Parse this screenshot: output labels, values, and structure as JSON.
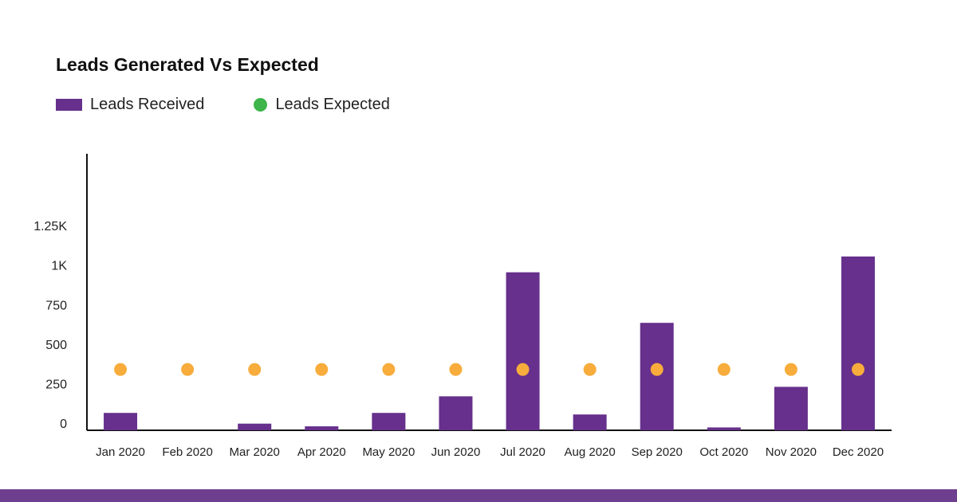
{
  "colors": {
    "bar": "#66308C",
    "expected_marker": "#F7AC3B",
    "legend_expected": "#3DB54A",
    "axis": "#111111",
    "footer": "#6F3F8F"
  },
  "chart_data": {
    "type": "bar",
    "title": "Leads Generated Vs Expected",
    "xlabel": "",
    "ylabel": "",
    "ylim": [
      0,
      1750
    ],
    "yticks": [
      0,
      250,
      500,
      750,
      1000,
      1250
    ],
    "ytick_labels": [
      "0",
      "250",
      "500",
      "750",
      "1K",
      "1.25K"
    ],
    "grid": false,
    "legend_placement": "top-left",
    "categories": [
      "Jan 2020",
      "Feb 2020",
      "Mar 2020",
      "Apr 2020",
      "May 2020",
      "Jun 2020",
      "Jul 2020",
      "Aug 2020",
      "Sep 2020",
      "Oct 2020",
      "Nov 2020",
      "Dec 2020"
    ],
    "series": [
      {
        "name": "Leads Received",
        "type": "bar",
        "values": [
          110,
          0,
          42,
          25,
          110,
          215,
          1000,
          100,
          680,
          18,
          275,
          1100
        ]
      },
      {
        "name": "Leads Expected",
        "type": "scatter",
        "values": [
          385,
          385,
          385,
          385,
          385,
          385,
          385,
          385,
          385,
          385,
          385,
          385
        ]
      }
    ]
  }
}
